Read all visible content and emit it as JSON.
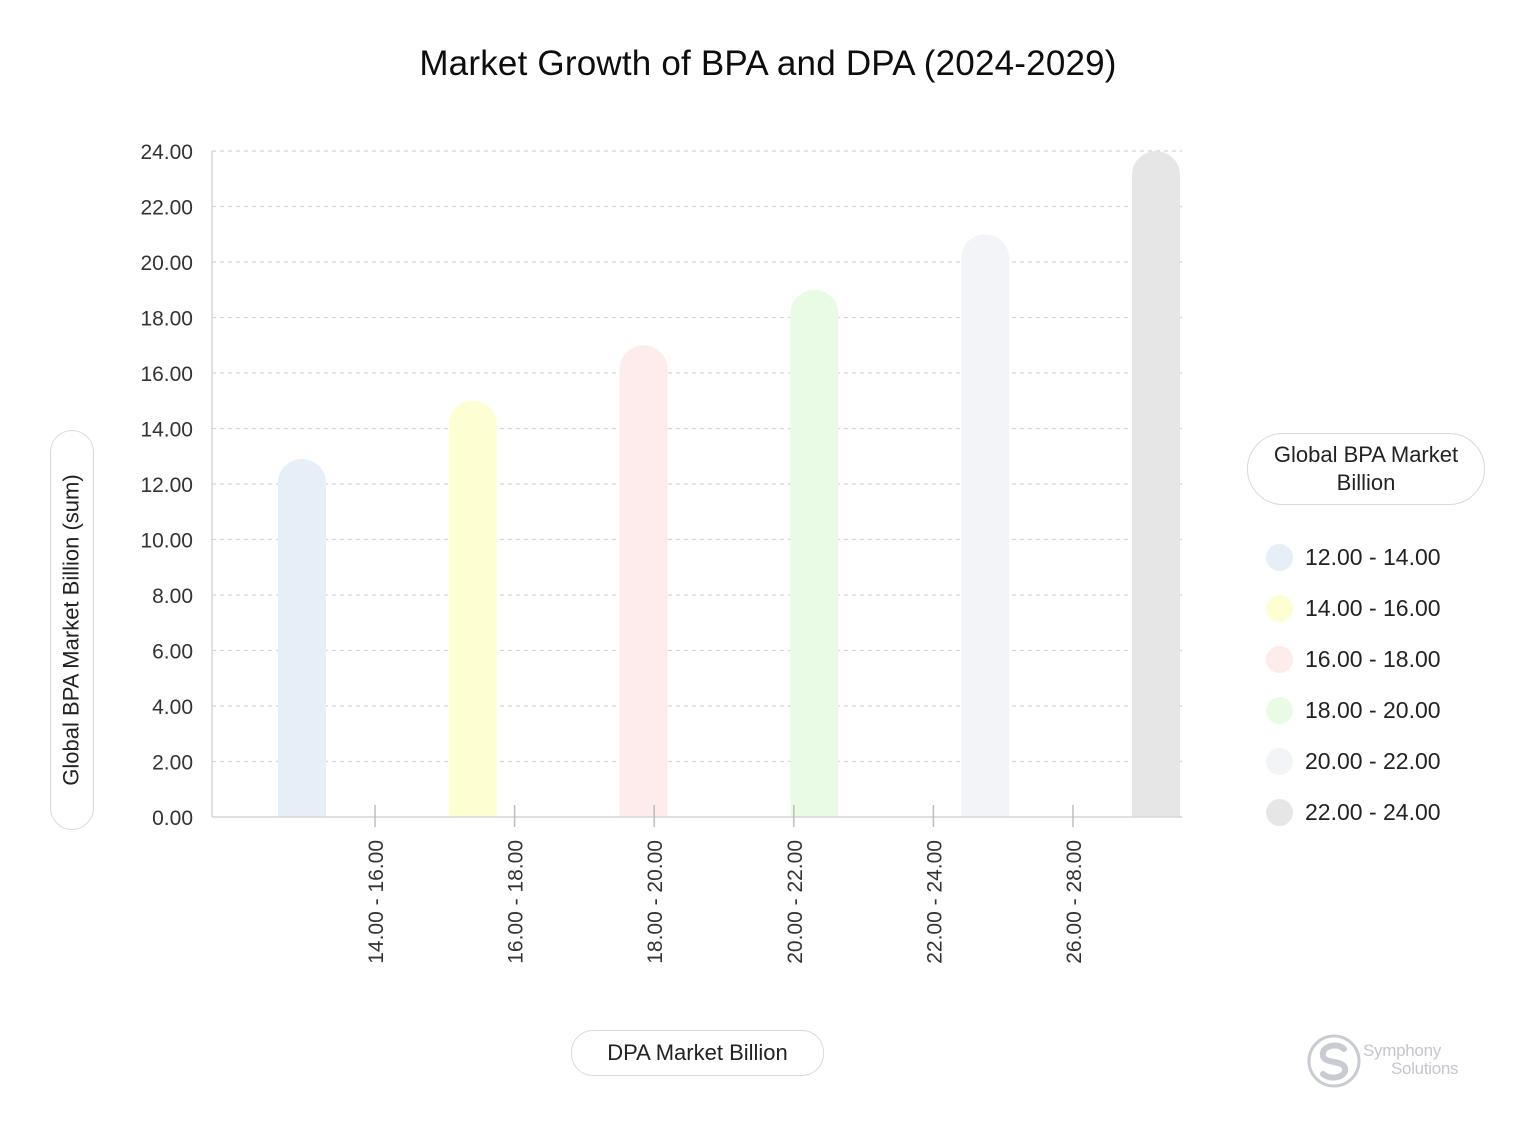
{
  "chart_data": {
    "type": "bar",
    "title": "Market Growth of BPA and DPA (2024-2029)",
    "ylabel": "Global BPA Market Billion (sum)",
    "xlabel": "DPA Market Billion",
    "ylim": [
      0,
      24
    ],
    "yticks": [
      "0.00",
      "2.00",
      "4.00",
      "6.00",
      "8.00",
      "10.00",
      "12.00",
      "14.00",
      "16.00",
      "18.00",
      "20.00",
      "22.00",
      "24.00"
    ],
    "categories": [
      "14.00 - 16.00",
      "16.00 - 18.00",
      "18.00 - 20.00",
      "20.00 - 22.00",
      "22.00 - 24.00",
      "26.00 - 28.00"
    ],
    "bars": [
      {
        "value": 12.9,
        "series": "12.00 - 14.00"
      },
      {
        "value": 15.0,
        "series": "14.00 - 16.00"
      },
      {
        "value": 17.0,
        "series": "16.00 - 18.00"
      },
      {
        "value": 19.0,
        "series": "18.00 - 20.00"
      },
      {
        "value": 21.0,
        "series": "20.00 - 22.00"
      },
      {
        "value": 24.0,
        "series": "22.00 - 24.00"
      }
    ],
    "grid": true,
    "legend_placement": "right",
    "legend": {
      "title": "Global BPA Market Billion",
      "items": [
        {
          "label": "12.00 - 14.00",
          "color": "#e6eef8"
        },
        {
          "label": "14.00 - 16.00",
          "color": "#fdfed2"
        },
        {
          "label": "16.00 - 18.00",
          "color": "#fdeceb"
        },
        {
          "label": "18.00 - 20.00",
          "color": "#e9fbe5"
        },
        {
          "label": "20.00 - 22.00",
          "color": "#f3f4f8"
        },
        {
          "label": "22.00 - 24.00",
          "color": "#e6e6e6"
        }
      ]
    }
  },
  "watermark": {
    "line1": "Symphony",
    "line2": "Solutions"
  }
}
